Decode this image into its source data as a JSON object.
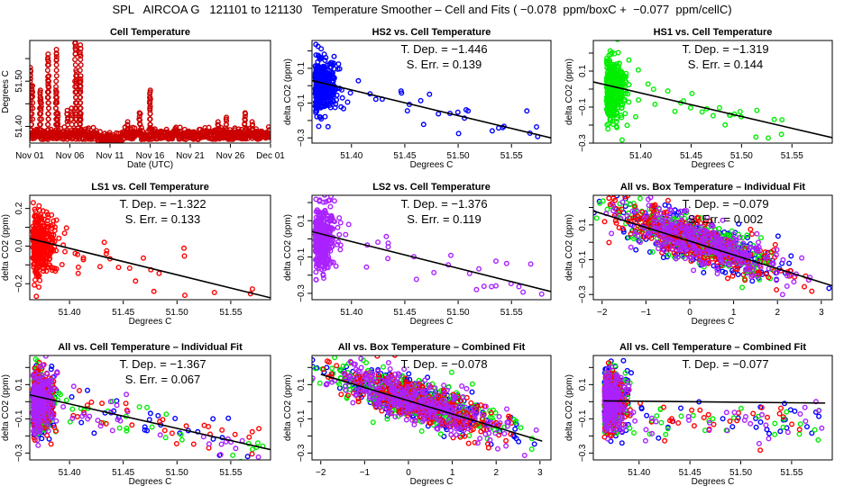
{
  "main_title": "SPL   AIRCOA G   121101 to 121130   Temperature Smoother – Cell and Fits ( −0.078  ppm/boxC +  −0.077  ppm/cellC)",
  "colors": {
    "HS2": "#0000ff",
    "HS1": "#00ee00",
    "LS1": "#ff0000",
    "LS2": "#aa22ff",
    "cell": "#cc0000",
    "fit": "#000000"
  },
  "chart_data": [
    {
      "type": "scatter",
      "id": "cell-temperature",
      "title": "Cell Temperature",
      "xlabel": "Date (UTC)",
      "ylabel": "Degrees C",
      "xticks": [
        "Nov 01",
        "Nov 06",
        "Nov 11",
        "Nov 16",
        "Nov 21",
        "Nov 26",
        "Dec 01"
      ],
      "xlim": [
        0,
        30
      ],
      "ylim": [
        51.363,
        51.59
      ],
      "yticks": [
        51.4,
        51.45,
        51.5,
        51.55
      ],
      "ytick_labels": [
        "51.40",
        "",
        "51.50",
        ""
      ],
      "series": [
        {
          "name": "cell",
          "color": "cell",
          "baseline": 51.38,
          "peaks": [
            [
              0.1,
              51.53
            ],
            [
              0.3,
              51.49
            ],
            [
              1.3,
              51.48
            ],
            [
              1.4,
              51.46
            ],
            [
              2.3,
              51.56
            ],
            [
              2.3,
              51.51
            ],
            [
              3.3,
              51.57
            ],
            [
              3.3,
              51.48
            ],
            [
              3.5,
              51.43
            ],
            [
              4.7,
              51.435
            ],
            [
              5.2,
              51.44
            ],
            [
              5.7,
              51.585
            ],
            [
              5.8,
              51.52
            ],
            [
              6.3,
              51.58
            ],
            [
              6.3,
              51.505
            ],
            [
              6.3,
              51.43
            ],
            [
              12.2,
              51.41
            ],
            [
              13.7,
              51.43
            ],
            [
              15.0,
              51.48
            ],
            [
              15.0,
              51.46
            ],
            [
              23.5,
              51.41
            ],
            [
              24.5,
              51.42
            ],
            [
              26.8,
              51.43
            ],
            [
              27.7,
              51.41
            ]
          ]
        }
      ]
    },
    {
      "type": "scatter",
      "id": "hs2-vs-cell",
      "title": "HS2 vs. Cell Temperature",
      "xlabel": "Degrees C",
      "ylabel": "delta CO2 (ppm)",
      "xticks": [
        51.4,
        51.45,
        51.5,
        51.55
      ],
      "xtick_labels": [
        "51.40",
        "51.45",
        "51.50",
        "51.55"
      ],
      "yticks": [
        -0.3,
        -0.2,
        -0.1,
        0.0,
        0.1,
        0.2
      ],
      "ytick_labels": [
        "−0.3",
        "",
        "−0.1",
        "",
        "0.1",
        ""
      ],
      "xlim": [
        51.363,
        51.587
      ],
      "ylim": [
        -0.33,
        0.26
      ],
      "series": [
        {
          "name": "HS2",
          "color": "HS2"
        }
      ],
      "fit": {
        "x0": 51.363,
        "y0": 0.03,
        "x1": 51.587,
        "y1": -0.3
      },
      "annotations": [
        "T. Dep. =  −1.446",
        "S. Err. = 0.139"
      ]
    },
    {
      "type": "scatter",
      "id": "hs1-vs-cell",
      "title": "HS1 vs. Cell Temperature",
      "xlabel": "Degrees C",
      "ylabel": "delta CO2 (ppm)",
      "xticks": [
        51.4,
        51.45,
        51.5,
        51.55
      ],
      "xtick_labels": [
        "51.40",
        "51.45",
        "51.50",
        "51.55"
      ],
      "yticks": [
        -0.3,
        -0.2,
        -0.1,
        0.0,
        0.1,
        0.2
      ],
      "ytick_labels": [
        "−0.3",
        "",
        "−0.1",
        "",
        "0.1",
        ""
      ],
      "xlim": [
        51.353,
        51.59
      ],
      "ylim": [
        -0.3,
        0.27
      ],
      "series": [
        {
          "name": "HS1",
          "color": "HS1"
        }
      ],
      "fit": {
        "x0": 51.353,
        "y0": 0.04,
        "x1": 51.59,
        "y1": -0.27
      },
      "annotations": [
        "T. Dep. =  −1.319",
        "S. Err. = 0.144"
      ]
    },
    {
      "type": "scatter",
      "id": "ls1-vs-cell",
      "title": "LS1 vs. Cell Temperature",
      "xlabel": "Degrees C",
      "ylabel": "delta CO2 (ppm)",
      "xticks": [
        51.4,
        51.45,
        51.5,
        51.55
      ],
      "xtick_labels": [
        "51.40",
        "51.45",
        "51.50",
        "51.55"
      ],
      "yticks": [
        -0.2,
        -0.1,
        0.0,
        0.1,
        0.2
      ],
      "ytick_labels": [
        "−0.2",
        "",
        "0.0",
        "",
        "0.2"
      ],
      "xlim": [
        51.363,
        51.587
      ],
      "ylim": [
        -0.285,
        0.27
      ],
      "series": [
        {
          "name": "LS1",
          "color": "LS1"
        }
      ],
      "fit": {
        "x0": 51.363,
        "y0": 0.04,
        "x1": 51.587,
        "y1": -0.275
      },
      "annotations": [
        "T. Dep. =  −1.322",
        "S. Err. = 0.133"
      ]
    },
    {
      "type": "scatter",
      "id": "ls2-vs-cell",
      "title": "LS2 vs. Cell Temperature",
      "xlabel": "Degrees C",
      "ylabel": "delta CO2 (ppm)",
      "xticks": [
        51.4,
        51.45,
        51.5,
        51.55
      ],
      "xtick_labels": [
        "51.40",
        "51.45",
        "51.50",
        "51.55"
      ],
      "yticks": [
        -0.3,
        -0.2,
        -0.1,
        0.0,
        0.1,
        0.2
      ],
      "ytick_labels": [
        "−0.3",
        "",
        "−0.1",
        "",
        "0.1",
        ""
      ],
      "xlim": [
        51.363,
        51.587
      ],
      "ylim": [
        -0.335,
        0.24
      ],
      "series": [
        {
          "name": "LS2",
          "color": "LS2"
        }
      ],
      "fit": {
        "x0": 51.363,
        "y0": 0.04,
        "x1": 51.587,
        "y1": -0.29
      },
      "annotations": [
        "T. Dep. =  −1.376",
        "S. Err. = 0.119"
      ]
    },
    {
      "type": "scatter",
      "id": "all-vs-box-individual",
      "title": "All vs. Box Temperature – Individual Fit",
      "xlabel": "Degrees C",
      "ylabel": "delta CO2 (ppm)",
      "xticks": [
        -2,
        -1,
        0,
        1,
        2,
        3
      ],
      "xtick_labels": [
        "−2",
        "−1",
        "0",
        "1",
        "2",
        "3"
      ],
      "yticks": [
        -0.3,
        -0.2,
        -0.1,
        0.0,
        0.1,
        0.2
      ],
      "ytick_labels": [
        "−0.3",
        "",
        "−0.1",
        "",
        "0.1",
        ""
      ],
      "xlim": [
        -2.2,
        3.25
      ],
      "ylim": [
        -0.33,
        0.27
      ],
      "series": [
        {
          "name": "HS2",
          "color": "HS2"
        },
        {
          "name": "HS1",
          "color": "HS1"
        },
        {
          "name": "LS1",
          "color": "LS1"
        },
        {
          "name": "LS2",
          "color": "LS2"
        }
      ],
      "fit": {
        "x0": -2.2,
        "y0": 0.18,
        "x1": 3.25,
        "y1": -0.25
      },
      "annotations": [
        "T. Dep. =  −0.079",
        "S. Err. = 0.002"
      ]
    },
    {
      "type": "scatter",
      "id": "all-vs-cell-individual",
      "title": "All vs. Cell Temperature – Individual Fit",
      "xlabel": "Degrees C",
      "ylabel": "delta CO2 (ppm)",
      "xticks": [
        51.4,
        51.45,
        51.5,
        51.55
      ],
      "xtick_labels": [
        "51.40",
        "51.45",
        "51.50",
        "51.55"
      ],
      "yticks": [
        -0.3,
        -0.2,
        -0.1,
        0.0,
        0.1,
        0.2
      ],
      "ytick_labels": [
        "−0.3",
        "",
        "−0.1",
        "",
        "0.1",
        ""
      ],
      "xlim": [
        51.363,
        51.587
      ],
      "ylim": [
        -0.34,
        0.27
      ],
      "series": [
        {
          "name": "HS2",
          "color": "HS2"
        },
        {
          "name": "HS1",
          "color": "HS1"
        },
        {
          "name": "LS1",
          "color": "LS1"
        },
        {
          "name": "LS2",
          "color": "LS2"
        }
      ],
      "fit": {
        "x0": 51.363,
        "y0": 0.04,
        "x1": 51.587,
        "y1": -0.28
      },
      "annotations": [
        "T. Dep. =  −1.367",
        "S. Err. = 0.067"
      ]
    },
    {
      "type": "scatter",
      "id": "all-vs-box-combined",
      "title": "All vs. Box Temperature – Combined Fit",
      "xlabel": "Degrees C",
      "ylabel": "delta CO2 (ppm)",
      "xticks": [
        -2,
        -1,
        0,
        1,
        2,
        3
      ],
      "xtick_labels": [
        "−2",
        "−1",
        "0",
        "1",
        "2",
        "3"
      ],
      "yticks": [
        -0.3,
        -0.2,
        -0.1,
        0.0,
        0.1,
        0.2
      ],
      "ytick_labels": [
        "−0.3",
        "",
        "−0.1",
        "",
        "0.1",
        ""
      ],
      "xlim": [
        -2.2,
        3.25
      ],
      "ylim": [
        -0.34,
        0.27
      ],
      "series": [
        {
          "name": "HS2",
          "color": "HS2"
        },
        {
          "name": "HS1",
          "color": "HS1"
        },
        {
          "name": "LS1",
          "color": "LS1"
        },
        {
          "name": "LS2",
          "color": "LS2"
        }
      ],
      "fit": {
        "x0": -2.0,
        "y0": 0.16,
        "x1": 3.05,
        "y1": -0.23
      },
      "annotations": [
        "T. Dep. =  −0.078"
      ]
    },
    {
      "type": "scatter",
      "id": "all-vs-cell-combined",
      "title": "All vs. Cell Temperature – Combined Fit",
      "xlabel": "Degrees C",
      "ylabel": "delta CO2 (ppm)",
      "xticks": [
        51.4,
        51.45,
        51.5,
        51.55
      ],
      "xtick_labels": [
        "51.40",
        "51.45",
        "51.50",
        "51.55"
      ],
      "yticks": [
        -0.3,
        -0.2,
        -0.1,
        0.0,
        0.1,
        0.2
      ],
      "ytick_labels": [
        "−0.3",
        "",
        "−0.1",
        "",
        "0.1",
        ""
      ],
      "xlim": [
        51.355,
        51.59
      ],
      "ylim": [
        -0.34,
        0.27
      ],
      "series": [
        {
          "name": "HS2",
          "color": "HS2"
        },
        {
          "name": "HS1",
          "color": "HS1"
        },
        {
          "name": "LS1",
          "color": "LS1"
        },
        {
          "name": "LS2",
          "color": "LS2"
        }
      ],
      "fit": {
        "x0": 51.365,
        "y0": 0.005,
        "x1": 51.583,
        "y1": -0.008
      },
      "annotations": [
        "T. Dep. =  −0.077"
      ]
    }
  ]
}
